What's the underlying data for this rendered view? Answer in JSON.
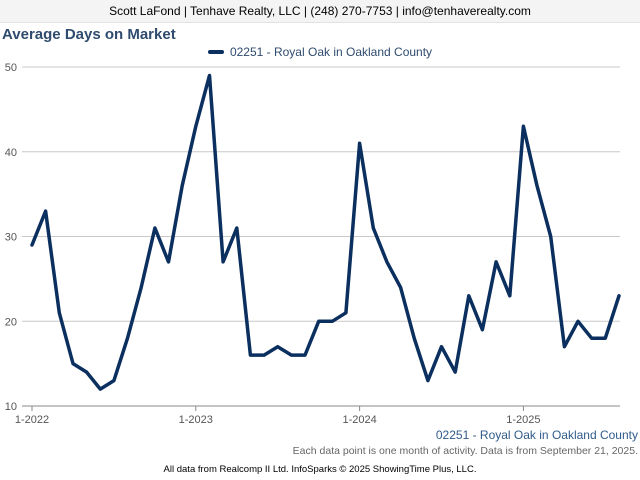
{
  "banner": "Scott LaFond | Tenhave Realty, LLC | (248) 270-7753 | info@tenhaverealty.com",
  "footnote": "Each data point is one month of activity. Data is from September 21, 2025.",
  "credit": "All data from Realcomp II Ltd. InfoSparks © 2025 ShowingTime Plus, LLC.",
  "series_caption": "02251 - Royal Oak in Oakland County",
  "colors": {
    "line": "#0b2f5e",
    "title": "#2f4b6e",
    "grid": "#c8c8c8",
    "background": "#ffffff"
  },
  "chart_data": {
    "type": "line",
    "title": "Average Days on Market",
    "xlabel": "",
    "ylabel": "",
    "ylim": [
      10,
      50
    ],
    "yticks": [
      "10",
      "20",
      "30",
      "40",
      "50"
    ],
    "xticks": [
      {
        "label": "1-2022",
        "index": 0
      },
      {
        "label": "1-2023",
        "index": 12
      },
      {
        "label": "1-2024",
        "index": 24
      },
      {
        "label": "1-2025",
        "index": 36
      }
    ],
    "grid": "horizontal",
    "legend": "top-center",
    "series": [
      {
        "name": "02251 - Royal Oak in Oakland County",
        "values": [
          29,
          33,
          21,
          15,
          14,
          12,
          13,
          18,
          24,
          31,
          27,
          36,
          43,
          49,
          27,
          31,
          16,
          16,
          17,
          16,
          16,
          20,
          20,
          21,
          41,
          31,
          27,
          24,
          18,
          13,
          17,
          14,
          23,
          19,
          27,
          23,
          43,
          36,
          30,
          17,
          20,
          18,
          18,
          23
        ]
      }
    ]
  }
}
